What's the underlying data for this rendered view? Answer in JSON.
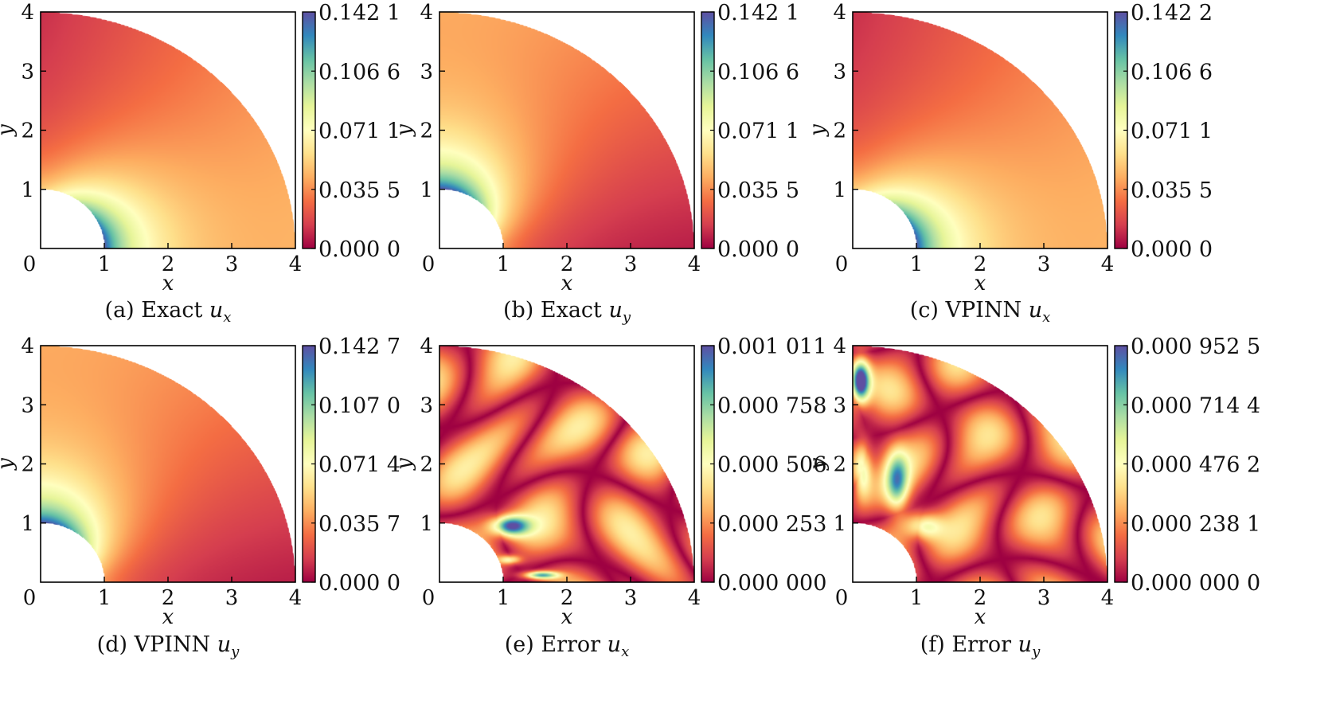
{
  "panels": [
    {
      "id": "a",
      "caption": {
        "prefix": "(a) Exact ",
        "var": "u",
        "sub": "x"
      },
      "field": "ux",
      "colorbar_ticks": [
        "0.142 1",
        "0.106 6",
        "0.071 1",
        "0.035 5",
        "0.000 0"
      ]
    },
    {
      "id": "b",
      "caption": {
        "prefix": "(b) Exact ",
        "var": "u",
        "sub": "y"
      },
      "field": "uy",
      "colorbar_ticks": [
        "0.142 1",
        "0.106 6",
        "0.071 1",
        "0.035 5",
        "0.000 0"
      ]
    },
    {
      "id": "c",
      "caption": {
        "prefix": "(c) VPINN ",
        "var": "u",
        "sub": "x"
      },
      "field": "ux",
      "colorbar_ticks": [
        "0.142 2",
        "0.106 6",
        "0.071 1",
        "0.035 5",
        "0.000 0"
      ]
    },
    {
      "id": "d",
      "caption": {
        "prefix": "(d) VPINN ",
        "var": "u",
        "sub": "y"
      },
      "field": "uy",
      "colorbar_ticks": [
        "0.142 7",
        "0.107 0",
        "0.071 4",
        "0.035 7",
        "0.000 0"
      ]
    },
    {
      "id": "e",
      "caption": {
        "prefix": "(e) Error ",
        "var": "u",
        "sub": "x"
      },
      "field": "errx",
      "colorbar_ticks": [
        "0.001 011",
        "0.000 758",
        "0.000 506",
        "0.000 253",
        "0.000 000"
      ]
    },
    {
      "id": "f",
      "caption": {
        "prefix": "(f) Error ",
        "var": "u",
        "sub": "y"
      },
      "field": "erry",
      "colorbar_ticks": [
        "0.000 952 5",
        "0.000 714 4",
        "0.000 476 2",
        "0.000 238 1",
        "0.000 000 0"
      ]
    }
  ],
  "axes": {
    "xlabel": "x",
    "ylabel": "y",
    "xticks": [
      "0",
      "1",
      "2",
      "3",
      "4"
    ],
    "yticks": [
      "1",
      "2",
      "3",
      "4"
    ]
  },
  "colormap": "Spectral",
  "chart_data": [
    {
      "type": "heatmap",
      "title": "(a) Exact u_x",
      "xlabel": "x",
      "ylabel": "y",
      "xlim": [
        0,
        4
      ],
      "ylim": [
        0,
        4
      ],
      "domain": "quarter annulus, inner radius 1, outer radius 4",
      "colorbar_range": [
        0.0,
        0.1421
      ]
    },
    {
      "type": "heatmap",
      "title": "(b) Exact u_y",
      "xlabel": "x",
      "ylabel": "y",
      "xlim": [
        0,
        4
      ],
      "ylim": [
        0,
        4
      ],
      "domain": "quarter annulus, inner radius 1, outer radius 4",
      "colorbar_range": [
        0.0,
        0.1421
      ]
    },
    {
      "type": "heatmap",
      "title": "(c) VPINN u_x",
      "xlabel": "x",
      "ylabel": "y",
      "xlim": [
        0,
        4
      ],
      "ylim": [
        0,
        4
      ],
      "domain": "quarter annulus, inner radius 1, outer radius 4",
      "colorbar_range": [
        0.0,
        0.1422
      ]
    },
    {
      "type": "heatmap",
      "title": "(d) VPINN u_y",
      "xlabel": "x",
      "ylabel": "y",
      "xlim": [
        0,
        4
      ],
      "ylim": [
        0,
        4
      ],
      "domain": "quarter annulus, inner radius 1, outer radius 4",
      "colorbar_range": [
        0.0,
        0.1427
      ]
    },
    {
      "type": "heatmap",
      "title": "(e) Error u_x",
      "xlabel": "x",
      "ylabel": "y",
      "xlim": [
        0,
        4
      ],
      "ylim": [
        0,
        4
      ],
      "domain": "quarter annulus, inner radius 1, outer radius 4",
      "colorbar_range": [
        0.0,
        0.001011
      ]
    },
    {
      "type": "heatmap",
      "title": "(f) Error u_y",
      "xlabel": "x",
      "ylabel": "y",
      "xlim": [
        0,
        4
      ],
      "ylim": [
        0,
        4
      ],
      "domain": "quarter annulus, inner radius 1, outer radius 4",
      "colorbar_range": [
        0.0,
        0.0009525
      ]
    }
  ]
}
